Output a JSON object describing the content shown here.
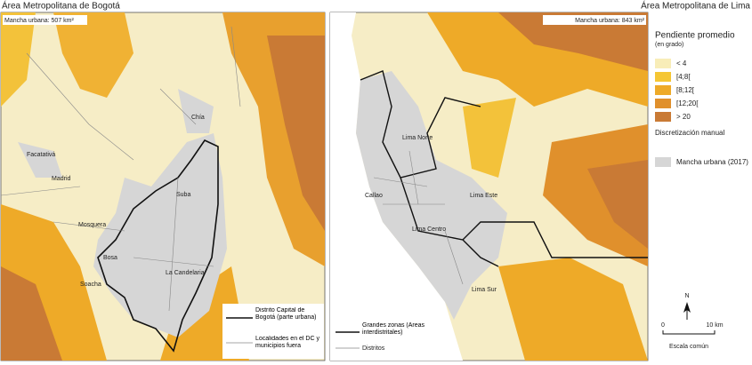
{
  "left_map": {
    "title": "Área Metropolitana de Bogotá",
    "urban_area": "Mancha urbana: 507 km²",
    "places": [
      "Chía",
      "Facatativá",
      "Madrid",
      "Suba",
      "Mosquera",
      "Bosa",
      "Soacha",
      "La Candelaria"
    ],
    "legend": [
      "Distrito Capital de Bogotá (parte urbana)",
      "Localidades en el DC y municipios fuera"
    ]
  },
  "right_map": {
    "title": "Área Metropolitana de Lima",
    "urban_area": "Mancha urbana: 843 km²",
    "places": [
      "Lima Norte",
      "Callao",
      "Lima Este",
      "Lima Centro",
      "Lima Sur"
    ],
    "legend": [
      "Grandes zonas (Áreas interdistritales)",
      "Distritos"
    ]
  },
  "legend": {
    "title": "Pendiente promedio",
    "subtitle": "(en grado)",
    "classes": [
      {
        "label": "< 4",
        "color": "#f8edb8"
      },
      {
        "label": "[4;8[",
        "color": "#f5c634"
      },
      {
        "label": "[8;12[",
        "color": "#eeaa28"
      },
      {
        "label": "[12;20[",
        "color": "#e0902c"
      },
      {
        "label": "> 20",
        "color": "#c97a35"
      }
    ],
    "method": "Discretización manual",
    "urban": {
      "label": "Mancha urbana (2017)",
      "color": "#d6d6d6"
    },
    "north": "N",
    "scale_start": "0",
    "scale_end": "10 km",
    "scale_caption": "Escala común"
  }
}
